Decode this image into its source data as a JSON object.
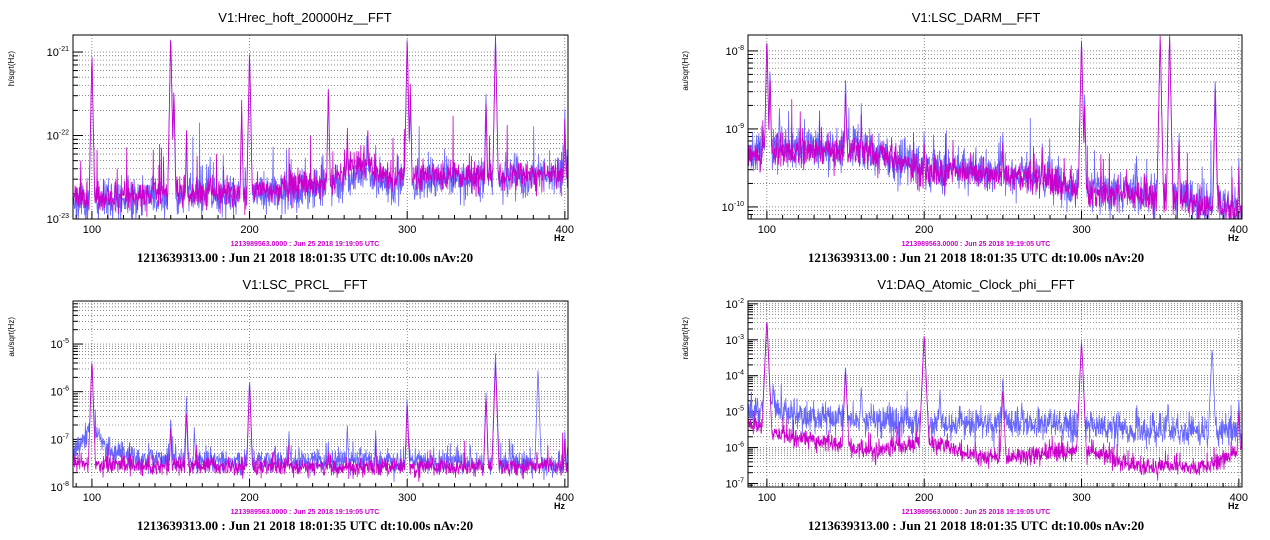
{
  "colors": {
    "current": "#6666ff",
    "reference": "#cc00cc"
  },
  "x_unit_label": "Hz",
  "chart_data": [
    {
      "type": "line",
      "title": "V1:Hrec_hoft_20000Hz__FFT",
      "ylabel": "h/sqrt(Hz)",
      "xlabel": "Hz",
      "xlim": [
        88,
        402
      ],
      "ylim": [
        1e-23,
        1.6e-21
      ],
      "log_y": true,
      "grid": true,
      "xticks": [
        100,
        200,
        300,
        400
      ],
      "yticks": [
        {
          "mant": "10",
          "exp": "-23",
          "v": 1e-23
        },
        {
          "mant": "10",
          "exp": "-22",
          "v": 1e-22
        },
        {
          "mant": "10",
          "exp": "-21",
          "v": 1e-21
        }
      ],
      "ref_caption": "1213989563.0000 : Jun 25 2018 19:19:05 UTC",
      "caption": "1213639313.00 : Jun 21 2018 18:01:35 UTC dt:10.00s nAv:20",
      "series": [
        {
          "role": "current",
          "seed": 11,
          "jitter": 0.12,
          "floor": [
            [
              88,
              1.7e-23
            ],
            [
              100,
              1.6e-23
            ],
            [
              140,
              1.9e-23
            ],
            [
              200,
              2e-23
            ],
            [
              250,
              2.4e-23
            ],
            [
              270,
              3.6e-23
            ],
            [
              290,
              2.6e-23
            ],
            [
              320,
              2.8e-23
            ],
            [
              360,
              3.1e-23
            ],
            [
              402,
              3.4e-23
            ]
          ],
          "peaks": [
            [
              100,
              9e-22
            ],
            [
              150,
              1.6e-21
            ],
            [
              152,
              3e-22
            ],
            [
              160,
              1e-22
            ],
            [
              175,
              6e-23
            ],
            [
              195,
              2e-22
            ],
            [
              200,
              1e-21
            ],
            [
              220,
              4e-23
            ],
            [
              250,
              4e-22
            ],
            [
              262,
              1e-22
            ],
            [
              275,
              1.1e-22
            ],
            [
              280,
              8e-23
            ],
            [
              300,
              1.6e-21
            ],
            [
              302,
              3e-22
            ],
            [
              330,
              5e-23
            ],
            [
              350,
              3.5e-22
            ],
            [
              356,
              1.6e-21
            ],
            [
              362,
              5e-23
            ],
            [
              385,
              5e-23
            ],
            [
              400,
              2e-22
            ]
          ]
        },
        {
          "role": "reference",
          "seed": 23,
          "jitter": 0.09,
          "floor": [
            [
              88,
              1.8e-23
            ],
            [
              100,
              1.7e-23
            ],
            [
              140,
              2e-23
            ],
            [
              200,
              2.1e-23
            ],
            [
              250,
              2.6e-23
            ],
            [
              270,
              4.8e-23
            ],
            [
              290,
              3e-23
            ],
            [
              320,
              3.2e-23
            ],
            [
              360,
              3.3e-23
            ],
            [
              402,
              3.6e-23
            ]
          ],
          "peaks": [
            [
              100,
              1e-21
            ],
            [
              150,
              1.6e-21
            ],
            [
              152,
              4e-22
            ],
            [
              160,
              1.2e-22
            ],
            [
              195,
              2.5e-22
            ],
            [
              200,
              1.1e-21
            ],
            [
              250,
              4e-22
            ],
            [
              262,
              1.3e-22
            ],
            [
              275,
              1.4e-22
            ],
            [
              300,
              1.6e-21
            ],
            [
              302,
              4e-22
            ],
            [
              330,
              4e-23
            ],
            [
              350,
              2.5e-22
            ],
            [
              356,
              1.6e-21
            ],
            [
              400,
              1.5e-22
            ]
          ]
        }
      ]
    },
    {
      "type": "line",
      "title": "V1:LSC_DARM__FFT",
      "ylabel": "au/sqrt(Hz)",
      "xlabel": "Hz",
      "xlim": [
        88,
        402
      ],
      "ylim": [
        7e-11,
        1.6e-08
      ],
      "log_y": true,
      "grid": true,
      "xticks": [
        100,
        200,
        300,
        400
      ],
      "yticks": [
        {
          "mant": "10",
          "exp": "-10",
          "v": 1e-10
        },
        {
          "mant": "10",
          "exp": "-9",
          "v": 1e-09
        },
        {
          "mant": "10",
          "exp": "-8",
          "v": 1e-08
        }
      ],
      "ref_caption": "1213989563.0000 : Jun 25 2018 19:19:05 UTC",
      "caption": "1213639313.00 : Jun 21 2018 18:01:35 UTC dt:10.00s nAv:20",
      "series": [
        {
          "role": "current",
          "seed": 31,
          "jitter": 0.14,
          "floor": [
            [
              88,
              4.5e-10
            ],
            [
              100,
              6e-10
            ],
            [
              120,
              5.5e-10
            ],
            [
              150,
              6e-10
            ],
            [
              180,
              4.5e-10
            ],
            [
              200,
              3e-10
            ],
            [
              250,
              2.8e-10
            ],
            [
              280,
              2.3e-10
            ],
            [
              300,
              1.7e-10
            ],
            [
              350,
              1.5e-10
            ],
            [
              380,
              1.1e-10
            ],
            [
              402,
              9e-11
            ]
          ],
          "peaks": [
            [
              100,
              1.6e-08
            ],
            [
              102,
              6e-09
            ],
            [
              108,
              2e-09
            ],
            [
              150,
              5e-09
            ],
            [
              160,
              2e-09
            ],
            [
              200,
              1e-09
            ],
            [
              210,
              4e-10
            ],
            [
              225,
              6e-10
            ],
            [
              250,
              1e-09
            ],
            [
              262,
              4e-10
            ],
            [
              275,
              8e-10
            ],
            [
              300,
              1.6e-08
            ],
            [
              302,
              3e-09
            ],
            [
              335,
              5e-10
            ],
            [
              350,
              1.6e-08
            ],
            [
              356,
              1.6e-08
            ],
            [
              362,
              1e-09
            ],
            [
              385,
              5e-09
            ],
            [
              400,
              4e-10
            ]
          ]
        },
        {
          "role": "reference",
          "seed": 47,
          "jitter": 0.1,
          "floor": [
            [
              88,
              4e-10
            ],
            [
              100,
              5e-10
            ],
            [
              120,
              5e-10
            ],
            [
              150,
              5.5e-10
            ],
            [
              180,
              4e-10
            ],
            [
              200,
              2.8e-10
            ],
            [
              250,
              2.6e-10
            ],
            [
              280,
              2.2e-10
            ],
            [
              300,
              1.6e-10
            ],
            [
              350,
              1.4e-10
            ],
            [
              380,
              1e-10
            ],
            [
              402,
              9e-11
            ]
          ],
          "peaks": [
            [
              100,
              1.6e-08
            ],
            [
              102,
              5e-09
            ],
            [
              150,
              4e-09
            ],
            [
              160,
              1.5e-09
            ],
            [
              200,
              8e-10
            ],
            [
              250,
              8e-10
            ],
            [
              275,
              6e-10
            ],
            [
              300,
              1.6e-08
            ],
            [
              302,
              2e-09
            ],
            [
              350,
              1.6e-08
            ],
            [
              356,
              1.6e-08
            ],
            [
              362,
              8e-10
            ],
            [
              385,
              3e-09
            ],
            [
              400,
              3e-10
            ]
          ]
        }
      ]
    },
    {
      "type": "line",
      "title": "V1:LSC_PRCL__FFT",
      "ylabel": "au/sqrt(Hz)",
      "xlabel": "Hz",
      "xlim": [
        88,
        402
      ],
      "ylim": [
        1e-08,
        8e-05
      ],
      "log_y": true,
      "grid": true,
      "xticks": [
        100,
        200,
        300,
        400
      ],
      "yticks": [
        {
          "mant": "10",
          "exp": "-8",
          "v": 1e-08
        },
        {
          "mant": "10",
          "exp": "-7",
          "v": 1e-07
        },
        {
          "mant": "10",
          "exp": "-6",
          "v": 1e-06
        },
        {
          "mant": "10",
          "exp": "-5",
          "v": 1e-05
        }
      ],
      "ref_caption": "1213989563.0000 : Jun 25 2018 19:19:05 UTC",
      "caption": "1213639313.00 : Jun 21 2018 18:01:35 UTC dt:10.00s nAv:20",
      "series": [
        {
          "role": "current",
          "seed": 53,
          "jitter": 0.13,
          "floor": [
            [
              88,
              5e-08
            ],
            [
              100,
              2e-07
            ],
            [
              110,
              6e-08
            ],
            [
              130,
              4e-08
            ],
            [
              200,
              3.5e-08
            ],
            [
              300,
              3.5e-08
            ],
            [
              402,
              3e-08
            ]
          ],
          "peaks": [
            [
              100,
              5e-06
            ],
            [
              108,
              1e-07
            ],
            [
              150,
              3e-07
            ],
            [
              160,
              8e-07
            ],
            [
              165,
              2e-07
            ],
            [
              200,
              2e-06
            ],
            [
              225,
              1.6e-07
            ],
            [
              250,
              1e-07
            ],
            [
              262,
              2e-07
            ],
            [
              280,
              1.5e-07
            ],
            [
              300,
              8e-07
            ],
            [
              325,
              6e-08
            ],
            [
              340,
              1e-07
            ],
            [
              350,
              1e-06
            ],
            [
              356,
              6e-06
            ],
            [
              365,
              1e-07
            ],
            [
              378,
              6e-08
            ],
            [
              383,
              3e-06
            ],
            [
              400,
              1.5e-07
            ]
          ]
        },
        {
          "role": "reference",
          "seed": 67,
          "jitter": 0.09,
          "floor": [
            [
              88,
              3.5e-08
            ],
            [
              100,
              3e-08
            ],
            [
              130,
              2.7e-08
            ],
            [
              200,
              2.6e-08
            ],
            [
              300,
              2.6e-08
            ],
            [
              402,
              2.8e-08
            ]
          ],
          "peaks": [
            [
              100,
              5e-06
            ],
            [
              150,
              2e-07
            ],
            [
              160,
              4e-07
            ],
            [
              200,
              1.6e-06
            ],
            [
              250,
              6e-08
            ],
            [
              280,
              8e-08
            ],
            [
              300,
              6e-07
            ],
            [
              350,
              8e-07
            ],
            [
              356,
              4e-06
            ],
            [
              400,
              1e-07
            ]
          ]
        }
      ]
    },
    {
      "type": "line",
      "title": "V1:DAQ_Atomic_Clock_phi__FFT",
      "ylabel": "rad/sqrt(Hz)",
      "xlabel": "Hz",
      "xlim": [
        88,
        402
      ],
      "ylim": [
        8e-08,
        0.012
      ],
      "log_y": true,
      "grid": true,
      "xticks": [
        100,
        200,
        300,
        400
      ],
      "yticks": [
        {
          "mant": "10",
          "exp": "-7",
          "v": 1e-07
        },
        {
          "mant": "10",
          "exp": "-6",
          "v": 1e-06
        },
        {
          "mant": "10",
          "exp": "-5",
          "v": 1e-05
        },
        {
          "mant": "10",
          "exp": "-4",
          "v": 0.0001
        },
        {
          "mant": "10",
          "exp": "-3",
          "v": 0.001
        },
        {
          "mant": "10",
          "exp": "-2",
          "v": 0.01
        }
      ],
      "ref_caption": "1213989563.0000 : Jun 25 2018 19:19:05 UTC",
      "caption": "1213639313.00 : Jun 21 2018 18:01:35 UTC dt:10.00s nAv:20",
      "series": [
        {
          "role": "current",
          "seed": 71,
          "jitter": 0.22,
          "floor": [
            [
              88,
              1e-05
            ],
            [
              100,
              1.5e-05
            ],
            [
              120,
              8e-06
            ],
            [
              150,
              6e-06
            ],
            [
              200,
              4e-06
            ],
            [
              250,
              5e-06
            ],
            [
              300,
              4e-06
            ],
            [
              350,
              3e-06
            ],
            [
              402,
              2.5e-06
            ]
          ],
          "peaks": [
            [
              100,
              0.004
            ],
            [
              104,
              6e-05
            ],
            [
              150,
              0.0002
            ],
            [
              160,
              5e-05
            ],
            [
              200,
              0.0015
            ],
            [
              210,
              4e-05
            ],
            [
              250,
              0.0001
            ],
            [
              262,
              2e-05
            ],
            [
              300,
              0.001
            ],
            [
              355,
              2e-05
            ],
            [
              383,
              0.0006
            ],
            [
              400,
              2e-05
            ]
          ]
        },
        {
          "role": "reference",
          "seed": 89,
          "jitter": 0.13,
          "floor": [
            [
              88,
              5e-06
            ],
            [
              100,
              3e-06
            ],
            [
              130,
              1.5e-06
            ],
            [
              170,
              8e-07
            ],
            [
              200,
              1.5e-06
            ],
            [
              240,
              5e-07
            ],
            [
              300,
              8e-07
            ],
            [
              340,
              3e-07
            ],
            [
              380,
              3e-07
            ],
            [
              402,
              1e-06
            ]
          ],
          "peaks": [
            [
              100,
              0.004
            ],
            [
              150,
              0.00015
            ],
            [
              200,
              0.0015
            ],
            [
              250,
              4e-05
            ],
            [
              300,
              0.001
            ],
            [
              400,
              1e-05
            ]
          ]
        }
      ]
    }
  ]
}
